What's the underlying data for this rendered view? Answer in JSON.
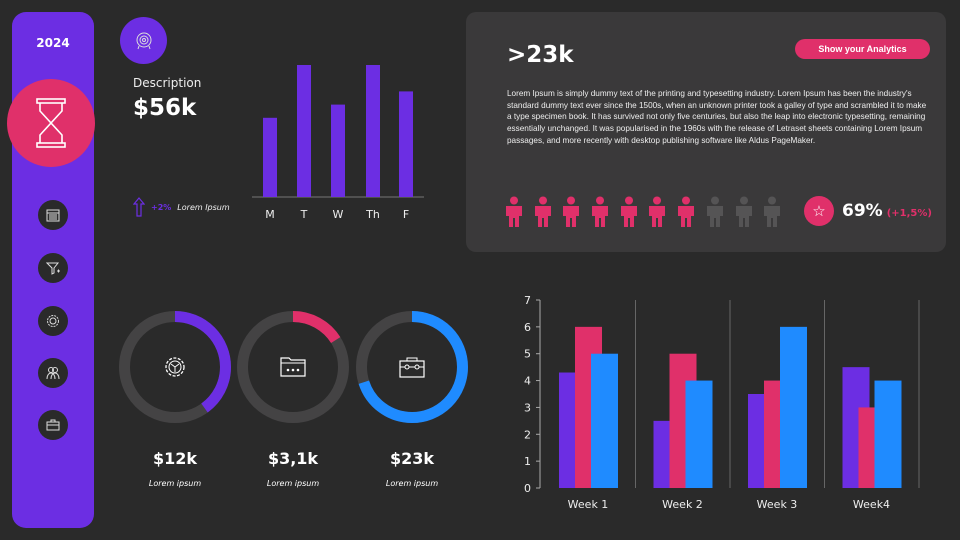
{
  "colors": {
    "bg": "#2a2a2a",
    "purple": "#6c2ee3",
    "pink": "#e0306a",
    "blue": "#1f8bff",
    "track": "#444344",
    "inactive": "#555455"
  },
  "sidebar": {
    "year": "2024",
    "hero_icon": "hourglass-icon",
    "items": [
      {
        "icon": "calendar-icon"
      },
      {
        "icon": "funnel-icon"
      },
      {
        "icon": "gear-badge-icon"
      },
      {
        "icon": "users-icon"
      },
      {
        "icon": "toolbox-icon"
      }
    ]
  },
  "summary": {
    "icon": "target-icon",
    "label": "Description",
    "value": "$56k",
    "trend_pct": "+2%",
    "trend_label": "Lorem Ipsum"
  },
  "chart_data": [
    {
      "type": "bar",
      "categories": [
        "M",
        "T",
        "W",
        "Th",
        "F"
      ],
      "values": [
        60,
        100,
        70,
        100,
        80
      ],
      "title": "",
      "xlabel": "",
      "ylabel": ""
    },
    {
      "type": "bar",
      "categories": [
        "Week 1",
        "Week 2",
        "Week 3",
        "Week4"
      ],
      "ylim": [
        0,
        7
      ],
      "yticks": [
        0,
        1,
        2,
        3,
        4,
        5,
        6,
        7
      ],
      "grid": false,
      "series": [
        {
          "values": [
            4.3,
            2.5,
            3.5,
            4.5
          ],
          "color": "#6c2ee3"
        },
        {
          "values": [
            6,
            5,
            4,
            3
          ],
          "color": "#e0306a"
        },
        {
          "values": [
            5,
            4,
            6,
            4
          ],
          "color": "#1f8bff"
        }
      ]
    }
  ],
  "panel": {
    "headline": ">23k",
    "button": "Show your Analytics",
    "paragraph": "Lorem Ipsum is simply dummy text of the printing and typesetting industry. Lorem Ipsum has been the industry's standard dummy text ever since the 1500s, when an unknown printer took a galley of type and scrambled it to make a type specimen book. It has survived  not only five centuries, but also the leap into electronic typesetting, remaining essentially  unchanged. It was popularised in the 1960s with the release  of Letraset sheets containing Lorem Ipsum passages,  and more recently with desktop publishing software like Aldus PageMaker.",
    "people_total": 10,
    "people_active": 7,
    "percent": "69%",
    "delta": "(+1,5%)"
  },
  "donuts": [
    {
      "icon": "gear-icon",
      "fraction": 0.4,
      "color": "#6c2ee3",
      "value": "$12k",
      "label": "Lorem ipsum"
    },
    {
      "icon": "folder-icon",
      "fraction": 0.16,
      "color": "#e0306a",
      "value": "$3,1k",
      "label": "Lorem ipsum"
    },
    {
      "icon": "briefcase-icon",
      "fraction": 0.7,
      "color": "#1f8bff",
      "value": "$23k",
      "label": "Lorem ipsum"
    }
  ]
}
